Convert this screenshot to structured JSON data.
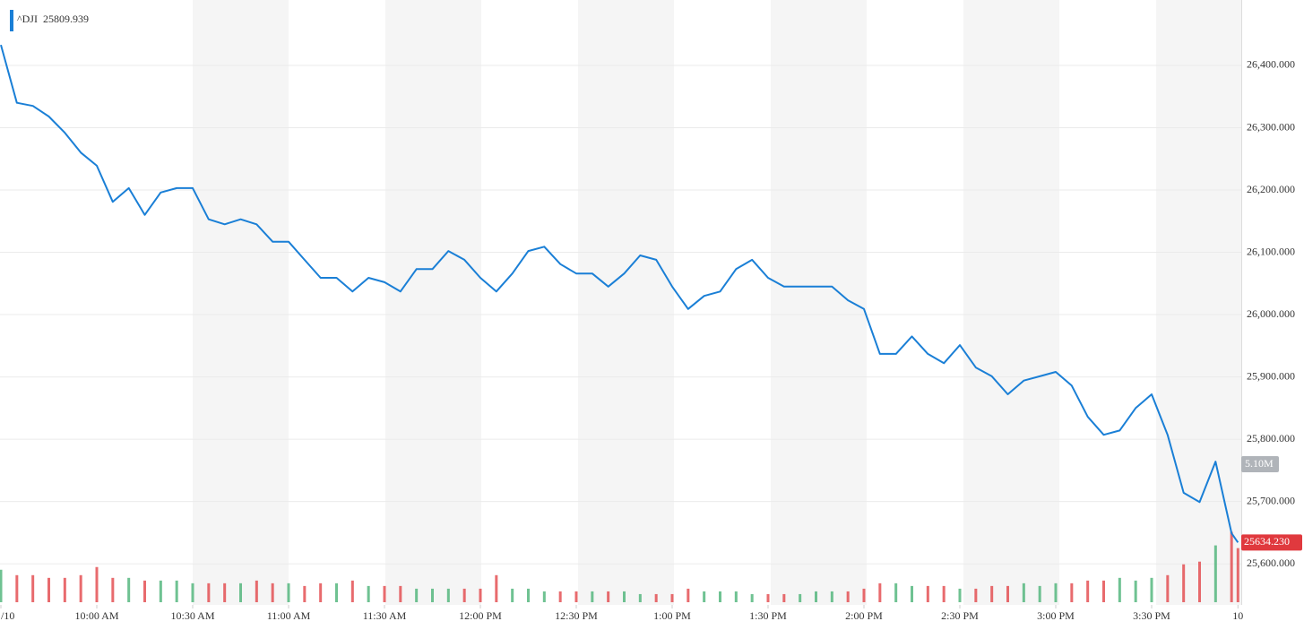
{
  "chart_data": {
    "type": "line",
    "series": [
      {
        "name": "^DJI",
        "color": "#1a7fd6",
        "values": [
          26433,
          26340,
          26335,
          26318,
          26292,
          26260,
          26239,
          26181,
          26203,
          26160,
          26196,
          26203,
          26203,
          26153,
          26145,
          26153,
          26145,
          26117,
          26117,
          26088,
          26059,
          26059,
          26037,
          26059,
          26052,
          26037,
          26073,
          26073,
          26102,
          26088,
          26059,
          26037,
          26066,
          26102,
          26109,
          26081,
          26066,
          26066,
          26045,
          26066,
          26095,
          26088,
          26045,
          26009,
          26030,
          26037,
          26073,
          26088,
          26059,
          26045,
          26045,
          26045,
          26045,
          26023,
          26009,
          25937,
          25937,
          25965,
          25937,
          25922,
          25951,
          25915,
          25901,
          25872,
          25894,
          25901,
          25908,
          25886,
          25836,
          25807,
          25814,
          25850,
          25872,
          25807,
          25714,
          25699,
          25764,
          25649,
          25634.23
        ]
      }
    ],
    "legend_value": "25809.939",
    "x": [
      0,
      5,
      10,
      15,
      20,
      25,
      30,
      35,
      40,
      45,
      50,
      55,
      60,
      65,
      70,
      75,
      80,
      85,
      90,
      95,
      100,
      105,
      110,
      115,
      120,
      125,
      130,
      135,
      140,
      145,
      150,
      155,
      160,
      165,
      170,
      175,
      180,
      185,
      190,
      195,
      200,
      205,
      210,
      215,
      220,
      225,
      230,
      235,
      240,
      245,
      250,
      255,
      260,
      265,
      270,
      275,
      280,
      285,
      290,
      295,
      300,
      305,
      310,
      315,
      320,
      325,
      330,
      335,
      340,
      345,
      350,
      355,
      360,
      365,
      370,
      375,
      380,
      385,
      387
    ],
    "xlim": [
      0,
      388
    ],
    "xticks": [
      {
        "value": 0,
        "label": "/10"
      },
      {
        "value": 30,
        "label": "10:00 AM"
      },
      {
        "value": 60,
        "label": "10:30 AM"
      },
      {
        "value": 90,
        "label": "11:00 AM"
      },
      {
        "value": 120,
        "label": "11:30 AM"
      },
      {
        "value": 150,
        "label": "12:00 PM"
      },
      {
        "value": 180,
        "label": "12:30 PM"
      },
      {
        "value": 210,
        "label": "1:00 PM"
      },
      {
        "value": 240,
        "label": "1:30 PM"
      },
      {
        "value": 270,
        "label": "2:00 PM"
      },
      {
        "value": 300,
        "label": "2:30 PM"
      },
      {
        "value": 330,
        "label": "3:00 PM"
      },
      {
        "value": 360,
        "label": "3:30 PM"
      },
      {
        "value": 387,
        "label": "10"
      }
    ],
    "ylim": [
      25534,
      26505
    ],
    "yticks": [
      {
        "value": 25600,
        "label": "25,600.000"
      },
      {
        "value": 25700,
        "label": "25,700.000"
      },
      {
        "value": 25800,
        "label": "25,800.000"
      },
      {
        "value": 25900,
        "label": "25,900.000"
      },
      {
        "value": 26000,
        "label": "26,000.000"
      },
      {
        "value": 26100,
        "label": "26,100.000"
      },
      {
        "value": 26200,
        "label": "26,200.000"
      },
      {
        "value": 26300,
        "label": "26,300.000"
      },
      {
        "value": 26400,
        "label": "26,400.000"
      }
    ],
    "grid": true,
    "last_price": {
      "value": 25634.23,
      "label": "25634.230",
      "color": "#e0393e"
    },
    "volume": {
      "values": [
        1.2,
        1.0,
        1.0,
        0.9,
        0.9,
        1.0,
        1.3,
        0.9,
        0.9,
        0.8,
        0.8,
        0.8,
        0.7,
        0.7,
        0.7,
        0.7,
        0.8,
        0.7,
        0.7,
        0.6,
        0.7,
        0.7,
        0.8,
        0.6,
        0.6,
        0.6,
        0.5,
        0.5,
        0.5,
        0.5,
        0.5,
        1.0,
        0.5,
        0.5,
        0.4,
        0.4,
        0.4,
        0.4,
        0.4,
        0.4,
        0.3,
        0.3,
        0.3,
        0.5,
        0.4,
        0.4,
        0.4,
        0.3,
        0.3,
        0.3,
        0.3,
        0.4,
        0.4,
        0.4,
        0.5,
        0.7,
        0.7,
        0.6,
        0.6,
        0.6,
        0.5,
        0.5,
        0.6,
        0.6,
        0.7,
        0.6,
        0.7,
        0.7,
        0.8,
        0.8,
        0.9,
        0.8,
        0.9,
        1.0,
        1.4,
        1.5,
        2.1,
        2.6,
        2.0
      ],
      "ylim": [
        0,
        5.1
      ],
      "max_label": "5.10M",
      "up_color": "#3fae6e",
      "down_color": "#e0393e"
    }
  }
}
